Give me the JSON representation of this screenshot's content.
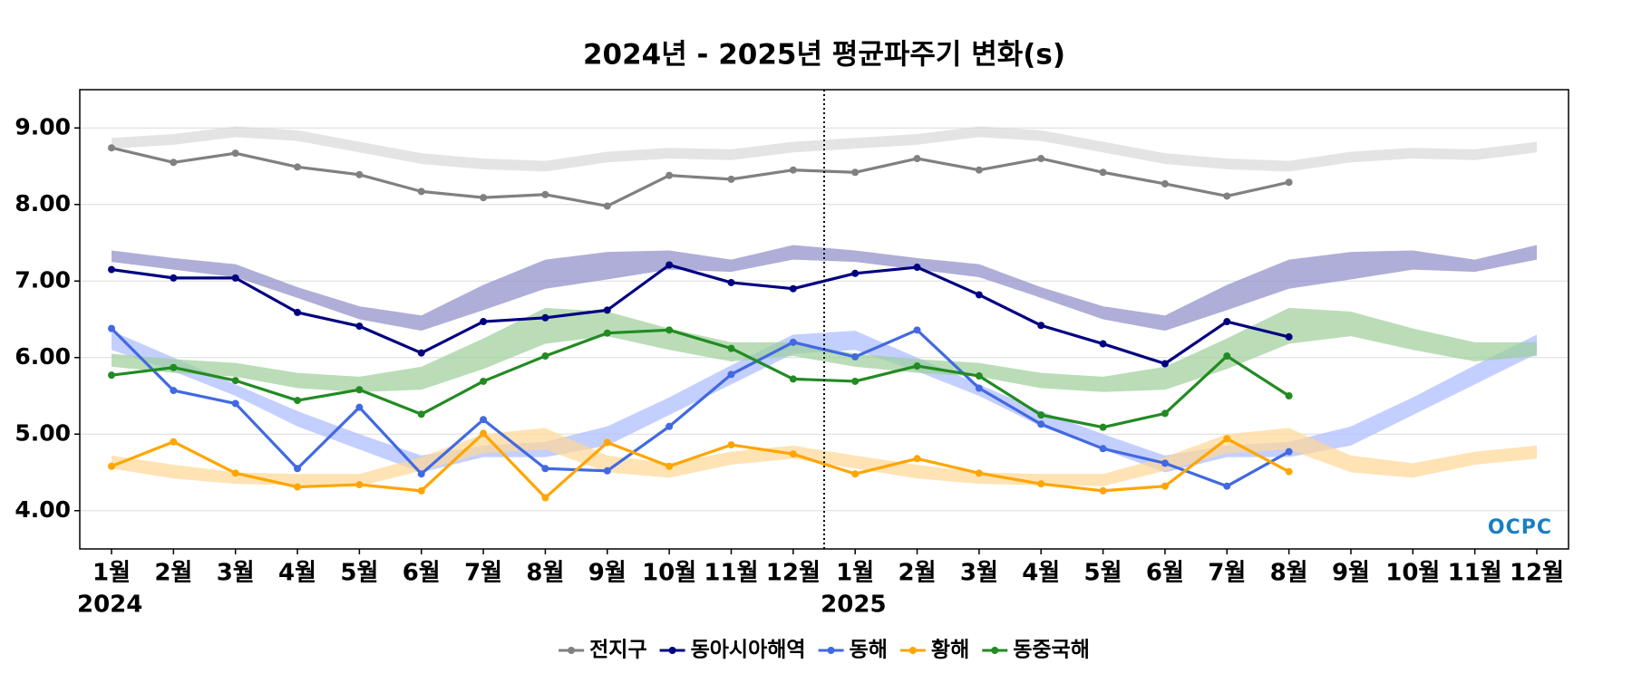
{
  "chart_data": {
    "type": "line",
    "title": "2024년 - 2025년 평균파주기 변화(s)",
    "categories": [
      "1월",
      "2월",
      "3월",
      "4월",
      "5월",
      "6월",
      "7월",
      "8월",
      "9월",
      "10월",
      "11월",
      "12월",
      "1월",
      "2월",
      "3월",
      "4월",
      "5월",
      "6월",
      "7월",
      "8월",
      "9월",
      "10월",
      "11월",
      "12월"
    ],
    "years": [
      "2024",
      "2025"
    ],
    "logo": "OCPC",
    "ylim": [
      3.5,
      9.5
    ],
    "yticks": [
      {
        "value": 4,
        "label": "4.00"
      },
      {
        "value": 5,
        "label": "5.00"
      },
      {
        "value": 6,
        "label": "6.00"
      },
      {
        "value": 7,
        "label": "7.00"
      },
      {
        "value": 8,
        "label": "8.00"
      },
      {
        "value": 9,
        "label": "9.00"
      }
    ],
    "grid": true,
    "legend": "bottom",
    "series": [
      {
        "name": "전지구",
        "color": "#808080",
        "band_color": "#d9d9d9",
        "values": [
          8.74,
          8.55,
          8.67,
          8.49,
          8.39,
          8.17,
          8.09,
          8.13,
          7.98,
          8.38,
          8.33,
          8.45,
          8.42,
          8.6,
          8.45,
          8.6,
          8.42,
          8.27,
          8.11,
          8.29,
          null,
          null,
          null,
          null
        ],
        "band": {
          "high": [
            8.87,
            8.92,
            9.02,
            8.97,
            8.82,
            8.67,
            8.6,
            8.57,
            8.69,
            8.74,
            8.72,
            8.82,
            8.87,
            8.92,
            9.02,
            8.97,
            8.82,
            8.67,
            8.6,
            8.57,
            8.69,
            8.74,
            8.72,
            8.82
          ],
          "low": [
            8.73,
            8.78,
            8.88,
            8.83,
            8.68,
            8.53,
            8.46,
            8.43,
            8.55,
            8.6,
            8.58,
            8.68,
            8.73,
            8.78,
            8.88,
            8.83,
            8.68,
            8.53,
            8.46,
            8.43,
            8.55,
            8.6,
            8.58,
            8.68
          ]
        }
      },
      {
        "name": "동아시아해역",
        "color": "#000080",
        "band_color": "#8c8cc8",
        "values": [
          7.15,
          7.04,
          7.04,
          6.59,
          6.41,
          6.06,
          6.47,
          6.52,
          6.62,
          7.21,
          6.98,
          6.9,
          7.1,
          7.18,
          6.82,
          6.42,
          6.18,
          5.92,
          6.47,
          6.27,
          null,
          null,
          null,
          null
        ],
        "band": {
          "high": [
            7.4,
            7.3,
            7.22,
            6.92,
            6.67,
            6.55,
            6.95,
            7.28,
            7.38,
            7.4,
            7.28,
            7.47,
            7.4,
            7.3,
            7.22,
            6.92,
            6.67,
            6.55,
            6.95,
            7.28,
            7.38,
            7.4,
            7.28,
            7.47
          ],
          "low": [
            7.25,
            7.15,
            7.05,
            6.78,
            6.5,
            6.35,
            6.62,
            6.9,
            7.02,
            7.15,
            7.12,
            7.28,
            7.25,
            7.15,
            7.05,
            6.78,
            6.5,
            6.35,
            6.62,
            6.9,
            7.02,
            7.15,
            7.12,
            7.28
          ]
        }
      },
      {
        "name": "동해",
        "color": "#4169e1",
        "band_color": "#a9bbff",
        "values": [
          6.38,
          5.57,
          5.4,
          4.55,
          5.35,
          4.48,
          5.19,
          4.55,
          4.52,
          5.1,
          5.78,
          6.2,
          6.01,
          6.36,
          5.6,
          5.13,
          4.81,
          4.62,
          4.32,
          4.77,
          null,
          null,
          null,
          null
        ],
        "band": {
          "high": [
            6.35,
            6.0,
            5.65,
            5.3,
            5.0,
            4.72,
            4.85,
            4.9,
            5.1,
            5.48,
            5.9,
            6.3,
            6.35,
            6.0,
            5.65,
            5.3,
            5.0,
            4.72,
            4.85,
            4.9,
            5.1,
            5.48,
            5.9,
            6.3
          ],
          "low": [
            6.1,
            5.82,
            5.5,
            5.1,
            4.8,
            4.5,
            4.7,
            4.7,
            4.85,
            5.25,
            5.65,
            6.05,
            6.1,
            5.82,
            5.5,
            5.1,
            4.8,
            4.5,
            4.7,
            4.7,
            4.85,
            5.25,
            5.65,
            6.05
          ]
        }
      },
      {
        "name": "황해",
        "color": "#ffa500",
        "band_color": "#ffd795",
        "values": [
          4.58,
          4.9,
          4.49,
          4.31,
          4.34,
          4.26,
          5.01,
          4.17,
          4.89,
          4.58,
          4.86,
          4.74,
          4.48,
          4.68,
          4.49,
          4.35,
          4.26,
          4.32,
          4.94,
          4.51,
          null,
          null,
          null,
          null
        ],
        "band": {
          "high": [
            4.72,
            4.6,
            4.5,
            4.48,
            4.48,
            4.7,
            5.0,
            5.08,
            4.72,
            4.62,
            4.77,
            4.85,
            4.72,
            4.6,
            4.5,
            4.48,
            4.48,
            4.7,
            5.0,
            5.08,
            4.72,
            4.62,
            4.77,
            4.85
          ],
          "low": [
            4.55,
            4.42,
            4.35,
            4.33,
            4.32,
            4.52,
            4.75,
            4.8,
            4.5,
            4.43,
            4.6,
            4.68,
            4.55,
            4.42,
            4.35,
            4.33,
            4.32,
            4.52,
            4.75,
            4.8,
            4.5,
            4.43,
            4.6,
            4.68
          ]
        }
      },
      {
        "name": "동중국해",
        "color": "#228b22",
        "band_color": "#9ccf98",
        "values": [
          5.77,
          5.87,
          5.7,
          5.44,
          5.58,
          5.26,
          5.69,
          6.02,
          6.32,
          6.36,
          6.12,
          5.72,
          5.69,
          5.89,
          5.76,
          5.25,
          5.09,
          5.27,
          6.02,
          5.5,
          null,
          null,
          null,
          null
        ],
        "band": {
          "high": [
            6.05,
            5.98,
            5.93,
            5.8,
            5.75,
            5.88,
            6.25,
            6.65,
            6.6,
            6.38,
            6.2,
            6.2,
            6.05,
            5.98,
            5.93,
            5.8,
            5.75,
            5.88,
            6.25,
            6.65,
            6.6,
            6.38,
            6.2,
            6.2
          ],
          "low": [
            5.88,
            5.8,
            5.75,
            5.6,
            5.55,
            5.58,
            5.85,
            6.18,
            6.28,
            6.1,
            5.95,
            6.02,
            5.88,
            5.8,
            5.75,
            5.6,
            5.55,
            5.58,
            5.85,
            6.18,
            6.28,
            6.1,
            5.95,
            6.02
          ]
        }
      }
    ]
  }
}
